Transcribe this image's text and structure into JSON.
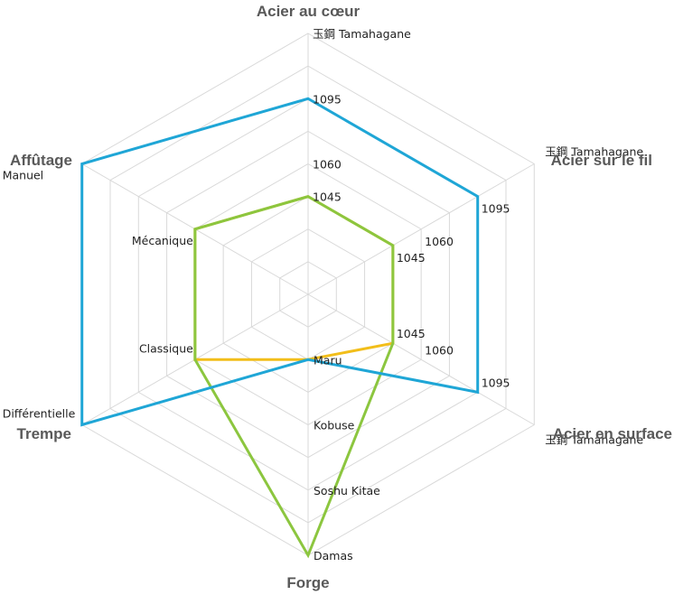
{
  "chart_data": {
    "type": "radar",
    "axes": [
      {
        "name": "Acier au cœur",
        "ticks": [
          {
            "label": "1045",
            "level": 3
          },
          {
            "label": "1060",
            "level": 4
          },
          {
            "label": "1095",
            "level": 6
          },
          {
            "label": "玉鋼 Tamahagane",
            "level": 8
          }
        ]
      },
      {
        "name": "Acier sur le fil",
        "ticks": [
          {
            "label": "1045",
            "level": 3
          },
          {
            "label": "1060",
            "level": 4
          },
          {
            "label": "1095",
            "level": 6
          },
          {
            "label": "玉鋼 Tamahagane",
            "level": 8
          }
        ]
      },
      {
        "name": "Acier en surface",
        "ticks": [
          {
            "label": "1045",
            "level": 3
          },
          {
            "label": "1060",
            "level": 4
          },
          {
            "label": "1095",
            "level": 6
          },
          {
            "label": "玉鋼 Tamahagane",
            "level": 8
          }
        ]
      },
      {
        "name": "Forge",
        "ticks": [
          {
            "label": "Maru",
            "level": 2
          },
          {
            "label": "Kobuse",
            "level": 4
          },
          {
            "label": "Soshu Kitae",
            "level": 6
          },
          {
            "label": "Damas",
            "level": 8
          }
        ]
      },
      {
        "name": "Trempe",
        "ticks": [
          {
            "label": "Classique",
            "level": 4
          },
          {
            "label": "Différentielle",
            "level": 8
          }
        ]
      },
      {
        "name": "Affûtage",
        "ticks": [
          {
            "label": "Mécanique",
            "level": 4
          },
          {
            "label": "Manuel",
            "level": 8
          }
        ]
      }
    ],
    "max_level": 8,
    "series": [
      {
        "color": "#F2BE1A",
        "values": [
          3,
          3,
          3,
          2,
          4,
          4
        ]
      },
      {
        "color": "#8CC63F",
        "values": [
          3,
          3,
          3,
          8,
          4,
          4
        ]
      },
      {
        "color": "#1FA6D6",
        "values": [
          6,
          6,
          6,
          2,
          8,
          8
        ]
      }
    ]
  }
}
